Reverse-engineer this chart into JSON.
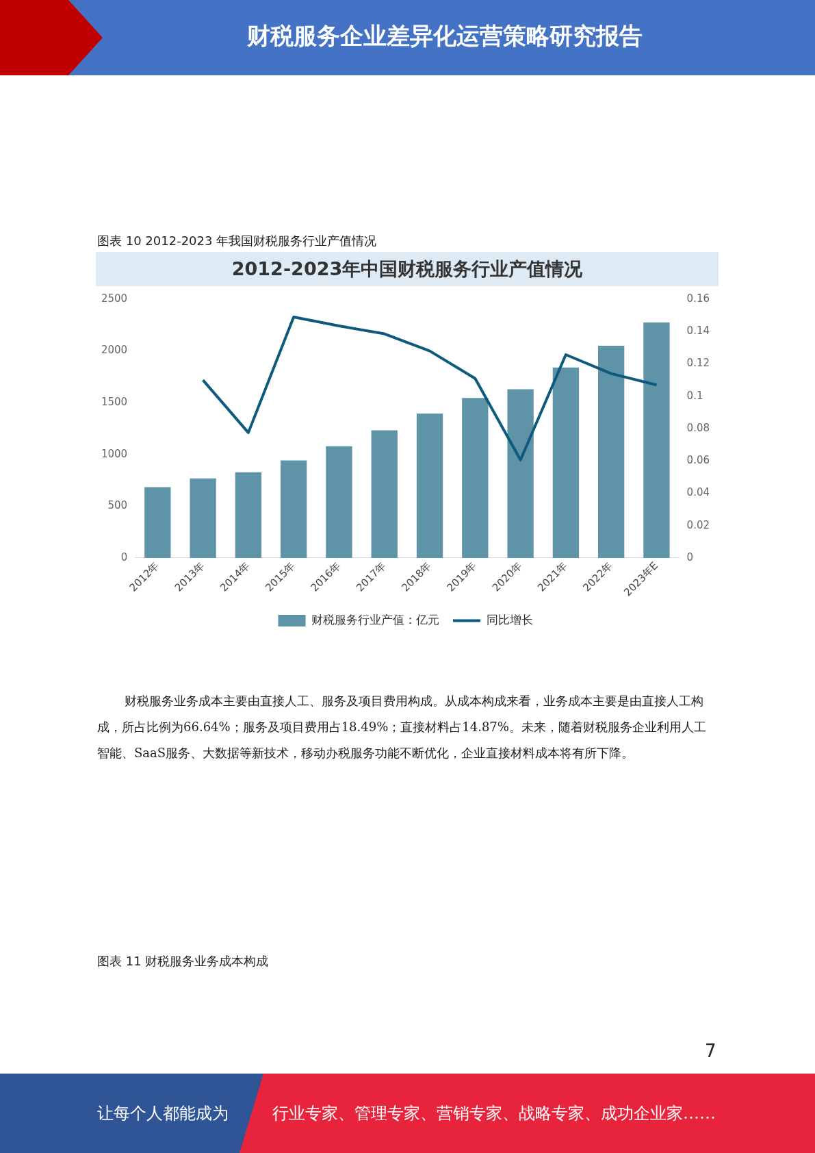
{
  "chart_data": {
    "type": "bar",
    "title": "2012-2023年中国财税服务行业产值情况",
    "categories": [
      "2012年",
      "2013年",
      "2014年",
      "2015年",
      "2016年",
      "2017年",
      "2018年",
      "2019年",
      "2020年",
      "2021年",
      "2022年",
      "2023年E"
    ],
    "series": [
      {
        "name": "财税服务行业产值：亿元",
        "color": "#5f93a8",
        "values": [
          685,
          768,
          828,
          943,
          1080,
          1234,
          1395,
          1546,
          1631,
          1840,
          2050,
          2275
        ]
      },
      {
        "name": "同比增长",
        "type": "line",
        "axis": "y2",
        "color": "#0d5a7e",
        "values": [
          null,
          0.11,
          0.0775,
          0.149,
          0.1435,
          0.1386,
          0.128,
          0.111,
          0.0606,
          0.1257,
          0.114,
          0.107
        ]
      }
    ],
    "ylim": [
      0,
      2500
    ],
    "yticks": [
      0,
      500,
      1000,
      1500,
      2000,
      2500
    ],
    "y2lim": [
      0,
      0.16
    ],
    "y2ticks": [
      0,
      0.02,
      0.04,
      0.06,
      0.08,
      {
        "value": 0.1,
        "label": "0.1"
      },
      0.12,
      0.14,
      0.16
    ],
    "grid": false,
    "legend": "bottom",
    "marker": "none",
    "line_style": "solid",
    "annotations": [
      "财税服务企业差异化运营策略研究报告",
      "图表 10 2012-2023 年我国财税服务行业产值情况",
      "财税服务业务成本主要由直接人工、服务及项目费用构成。从成本构成来看，业务成本主要是由直接人工构成，所占比例为66.64%；服务及项目费用占18.49%；直接材料占14.87%。未来，随着财税服务企业利用人工智能、SaaS服务、大数据等新技术，移动办税服务功能不断优化，企业直接材料成本将有所下降。",
      "图表 11 财税服务业务成本构成",
      "7",
      "让每个人都能成为",
      "行业专家、管理专家、营销专家、战略专家、成功企业家……"
    ]
  }
}
